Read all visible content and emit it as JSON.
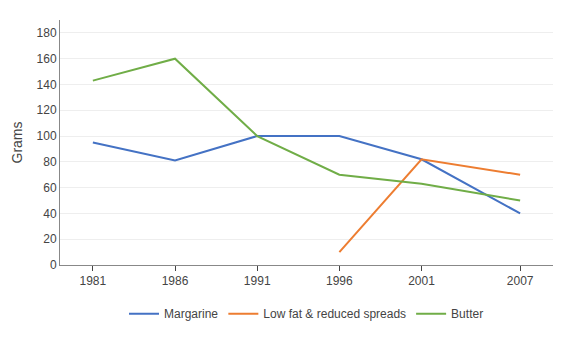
{
  "chart_data": {
    "type": "line",
    "ylabel": "Grams",
    "x": [
      1981,
      1986,
      1991,
      1996,
      2001,
      2007
    ],
    "series": [
      {
        "name": "Margarine",
        "color": "#4472C4",
        "values": [
          95,
          81,
          100,
          100,
          82,
          40
        ]
      },
      {
        "name": "Low fat & reduced spreads",
        "color": "#ED7D31",
        "values": [
          null,
          null,
          null,
          10,
          82,
          70
        ]
      },
      {
        "name": "Butter",
        "color": "#70AD47",
        "values": [
          143,
          160,
          100,
          70,
          63,
          50
        ]
      }
    ],
    "xlim": [
      1979,
      2009
    ],
    "xticks": [
      1981,
      1986,
      1991,
      1996,
      2001,
      2007
    ],
    "ylim": [
      0,
      190
    ],
    "yticks": [
      0,
      20,
      40,
      60,
      80,
      100,
      120,
      140,
      160,
      180
    ],
    "grid": true,
    "legend": "bottom"
  }
}
